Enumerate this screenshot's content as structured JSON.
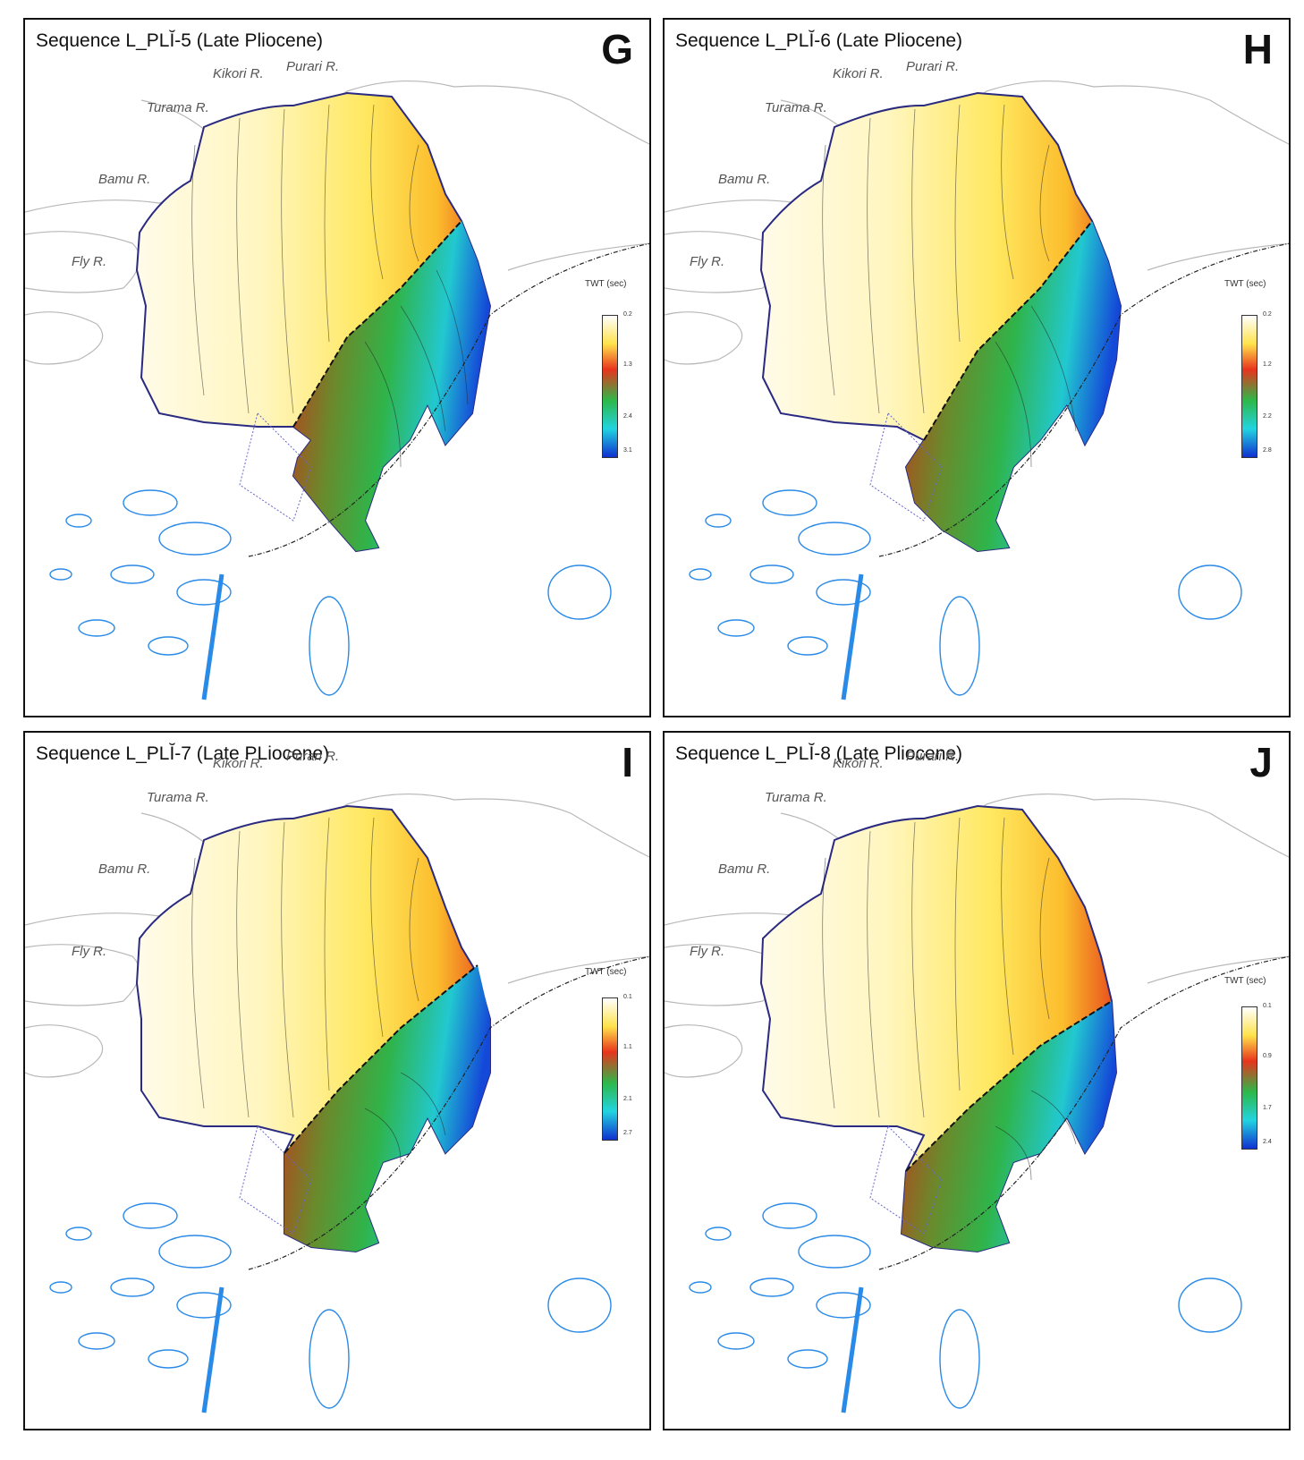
{
  "panels": [
    {
      "title": "Sequence L_PLĬ-5 (Late Pliocene)",
      "letter": "G",
      "legend": {
        "title": "TWT (sec)",
        "ticks": [
          "0.2",
          "1.3",
          "2.4",
          "3.1"
        ]
      }
    },
    {
      "title": "Sequence L_PLĬ-6 (Late Pliocene)",
      "letter": "H",
      "legend": {
        "title": "TWT (sec)",
        "ticks": [
          "0.2",
          "1.2",
          "2.2",
          "2.8"
        ]
      }
    },
    {
      "title": "Sequence L_PLĬ-7 (Late PLiocene)",
      "letter": "I",
      "legend": {
        "title": "TWT (sec)",
        "ticks": [
          "0.1",
          "1.1",
          "2.1",
          "2.7"
        ]
      }
    },
    {
      "title": "Sequence L_PLĬ-8 (Late Pliocene)",
      "letter": "J",
      "legend": {
        "title": "TWT (sec)",
        "ticks": [
          "0.1",
          "0.9",
          "1.7",
          "2.4"
        ]
      }
    }
  ],
  "rivers": {
    "kikori": "Kikori R.",
    "purari": "Purari R.",
    "turama": "Turama R.",
    "bamu": "Bamu R.",
    "fly": "Fly R."
  },
  "colors": {
    "low": "#fffbe6",
    "mid_low": "#ffe24a",
    "mid": "#e8341c",
    "mid_high": "#2db84a",
    "high": "#1060e0",
    "coast": "#aaaaaa",
    "reef": "#2a8ae8",
    "outline": "#2a2a80"
  }
}
